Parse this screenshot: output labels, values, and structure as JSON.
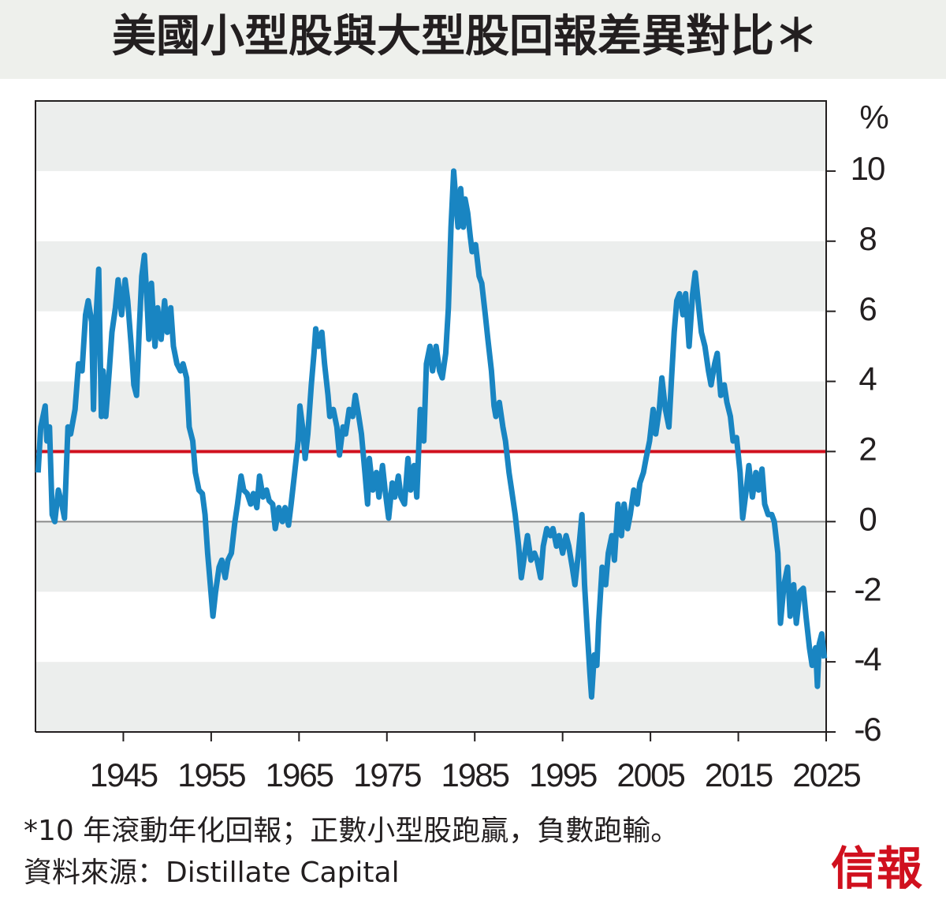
{
  "chart_data": {
    "type": "line",
    "title": "美國小型股與大型股回報差異對比＊",
    "y_axis_label": "%",
    "note": "*10 年滾動年化回報；正數小型股跑贏，負數跑輸。",
    "source": "資料來源：Distillate Capital",
    "brand": "信報",
    "xlim": [
      1935,
      2025
    ],
    "xticks": [
      1945,
      1955,
      1965,
      1975,
      1985,
      1995,
      2005,
      2015,
      2025
    ],
    "ylim": [
      -6,
      12
    ],
    "yticks": [
      -6,
      -4,
      -2,
      0,
      2,
      4,
      6,
      8,
      10
    ],
    "bands": true,
    "reference_line": {
      "value": 2,
      "color": "#d0101e"
    },
    "series": [
      {
        "color": "#1985c2",
        "x": [
          1935.3,
          1935.6,
          1936.1,
          1936.3,
          1936.6,
          1936.9,
          1937.2,
          1937.6,
          1938.0,
          1938.3,
          1938.7,
          1939.0,
          1939.5,
          1939.9,
          1940.3,
          1940.7,
          1941.0,
          1941.4,
          1941.6,
          1941.8,
          1942.2,
          1942.5,
          1942.7,
          1943.0,
          1943.4,
          1943.7,
          1944.1,
          1944.4,
          1944.8,
          1945.2,
          1945.5,
          1945.9,
          1946.2,
          1946.5,
          1946.8,
          1947.1,
          1947.4,
          1947.7,
          1947.9,
          1948.2,
          1948.6,
          1948.9,
          1949.3,
          1949.7,
          1950.0,
          1950.4,
          1950.7,
          1951.1,
          1951.5,
          1951.8,
          1952.2,
          1952.5,
          1952.9,
          1953.2,
          1953.6,
          1954.0,
          1954.3,
          1954.6,
          1954.9,
          1955.2,
          1955.5,
          1955.9,
          1956.2,
          1956.6,
          1956.9,
          1957.3,
          1957.7,
          1958.0,
          1958.4,
          1958.7,
          1959.1,
          1959.5,
          1959.8,
          1960.2,
          1960.5,
          1960.9,
          1961.3,
          1961.6,
          1962.0,
          1962.3,
          1962.7,
          1963.1,
          1963.4,
          1963.8,
          1964.1,
          1964.5,
          1964.9,
          1965.1,
          1965.4,
          1965.7,
          1966.0,
          1966.4,
          1966.7,
          1966.9,
          1967.2,
          1967.6,
          1967.9,
          1968.3,
          1968.5,
          1968.9,
          1969.3,
          1969.6,
          1970.0,
          1970.3,
          1970.7,
          1971.1,
          1971.4,
          1971.8,
          1972.1,
          1972.5,
          1972.8,
          1973.0,
          1973.4,
          1973.8,
          1974.1,
          1974.5,
          1974.8,
          1975.2,
          1975.6,
          1975.9,
          1976.3,
          1976.6,
          1977.0,
          1977.4,
          1977.7,
          1978.1,
          1978.4,
          1978.8,
          1979.2,
          1979.5,
          1979.9,
          1980.2,
          1980.6,
          1981.0,
          1981.3,
          1981.7,
          1982.0,
          1982.3,
          1982.6,
          1982.9,
          1983.1,
          1983.4,
          1983.7,
          1983.9,
          1984.2,
          1984.5,
          1984.7,
          1985.1,
          1985.5,
          1985.8,
          1986.2,
          1986.5,
          1986.9,
          1987.2,
          1987.4,
          1987.8,
          1988.2,
          1988.5,
          1988.9,
          1989.2,
          1989.6,
          1990.0,
          1990.3,
          1990.7,
          1991.0,
          1991.4,
          1991.8,
          1992.1,
          1992.5,
          1992.8,
          1993.2,
          1993.6,
          1993.9,
          1994.3,
          1994.6,
          1995.0,
          1995.4,
          1995.7,
          1996.1,
          1996.4,
          1996.8,
          1997.2,
          1997.5,
          1997.8,
          1998.1,
          1998.3,
          1998.6,
          1998.9,
          1999.1,
          1999.5,
          1999.9,
          2000.2,
          2000.6,
          2000.9,
          2001.3,
          2001.7,
          2002.0,
          2002.4,
          2002.7,
          2003.1,
          2003.5,
          2003.8,
          2004.2,
          2004.5,
          2004.9,
          2005.3,
          2005.6,
          2006.0,
          2006.3,
          2006.7,
          2007.1,
          2007.4,
          2007.7,
          2008.0,
          2008.3,
          2008.7,
          2009.0,
          2009.4,
          2009.8,
          2010.1,
          2010.5,
          2010.8,
          2011.2,
          2011.6,
          2011.9,
          2012.3,
          2012.6,
          2013.0,
          2013.4,
          2013.7,
          2014.1,
          2014.4,
          2014.8,
          2015.2,
          2015.5,
          2015.9,
          2016.2,
          2016.6,
          2017.0,
          2017.3,
          2017.7,
          2018.0,
          2018.4,
          2018.8,
          2019.1,
          2019.5,
          2019.8,
          2020.2,
          2020.6,
          2020.9,
          2021.3,
          2021.6,
          2022.0,
          2022.4,
          2022.7,
          2023.1,
          2023.4,
          2023.8,
          2024.0,
          2024.2,
          2024.5,
          2024.8
        ],
        "values": [
          1.4,
          2.7,
          3.3,
          2.3,
          2.7,
          0.2,
          0,
          0.9,
          0.5,
          0.1,
          2.7,
          2.5,
          3.2,
          4.5,
          4.3,
          5.9,
          6.3,
          5.7,
          3.2,
          5.4,
          7.2,
          3.0,
          4.3,
          3.0,
          4.3,
          5.4,
          6.1,
          6.9,
          5.9,
          6.9,
          6.3,
          5.0,
          3.9,
          3.6,
          5.4,
          7.0,
          7.6,
          6.3,
          5.2,
          6.8,
          5.0,
          6.1,
          5.2,
          6.3,
          5.4,
          6.1,
          5.0,
          4.5,
          4.3,
          4.5,
          4.1,
          2.7,
          2.3,
          1.4,
          0.9,
          0.8,
          0.2,
          -0.9,
          -1.8,
          -2.7,
          -2.0,
          -1.3,
          -1.1,
          -1.6,
          -1.1,
          -0.9,
          0,
          0.5,
          1.3,
          0.9,
          0.8,
          0.5,
          0.8,
          0.4,
          1.3,
          0.7,
          0.9,
          0.6,
          0.5,
          -0.2,
          0.4,
          0,
          0.4,
          -0.1,
          0.5,
          1.4,
          2.3,
          3.3,
          2.7,
          1.8,
          2.5,
          3.9,
          4.8,
          5.5,
          5.0,
          5.4,
          4.5,
          3.6,
          3.0,
          3.2,
          2.7,
          1.9,
          2.7,
          2.5,
          3.2,
          3.0,
          3.6,
          3.0,
          2.5,
          1.4,
          0.5,
          1.8,
          0.9,
          1.4,
          0.7,
          1.6,
          0.9,
          0.1,
          1.1,
          0.7,
          1.3,
          0.7,
          0.5,
          1.8,
          0.9,
          1.6,
          0.7,
          3.2,
          2.3,
          4.5,
          5.0,
          4.3,
          5.0,
          4.3,
          4.1,
          4.8,
          6.1,
          8.4,
          10.0,
          9.0,
          8.4,
          9.5,
          8.4,
          9.2,
          8.8,
          8.1,
          7.7,
          7.9,
          7.0,
          6.8,
          5.9,
          5.2,
          4.3,
          3.3,
          3.0,
          3.4,
          2.7,
          2.3,
          1.4,
          0.9,
          0.2,
          -0.7,
          -1.6,
          -0.9,
          -0.4,
          -1.1,
          -0.9,
          -1.1,
          -1.6,
          -0.7,
          -0.2,
          -0.4,
          -0.2,
          -0.7,
          -0.4,
          -0.9,
          -0.4,
          -0.7,
          -1.3,
          -1.8,
          -0.9,
          0.2,
          -1.8,
          -3.1,
          -4.3,
          -5.0,
          -3.8,
          -4.1,
          -2.9,
          -1.3,
          -1.8,
          -0.9,
          -0.4,
          -1.1,
          0.5,
          -0.4,
          0.5,
          -0.2,
          0.2,
          0.9,
          0.5,
          1.1,
          1.4,
          1.8,
          2.3,
          3.2,
          2.5,
          3.2,
          4.1,
          3.2,
          2.7,
          4.1,
          5.4,
          6.3,
          6.5,
          5.9,
          6.5,
          5.0,
          6.5,
          7.1,
          6.1,
          5.4,
          5.0,
          4.3,
          3.9,
          4.5,
          4.8,
          3.6,
          3.9,
          3.4,
          3.0,
          2.3,
          2.4,
          1.4,
          0.1,
          0.9,
          1.6,
          0.7,
          1.4,
          0.9,
          1.5,
          0.5,
          0.2,
          0.2,
          0,
          -0.9,
          -2.9,
          -1.8,
          -1.3,
          -2.7,
          -1.8,
          -2.9,
          -2.0,
          -1.9,
          -2.7,
          -3.6,
          -4.1,
          -3.6,
          -4.7,
          -3.5,
          -3.2,
          -3.9
        ]
      }
    ]
  }
}
